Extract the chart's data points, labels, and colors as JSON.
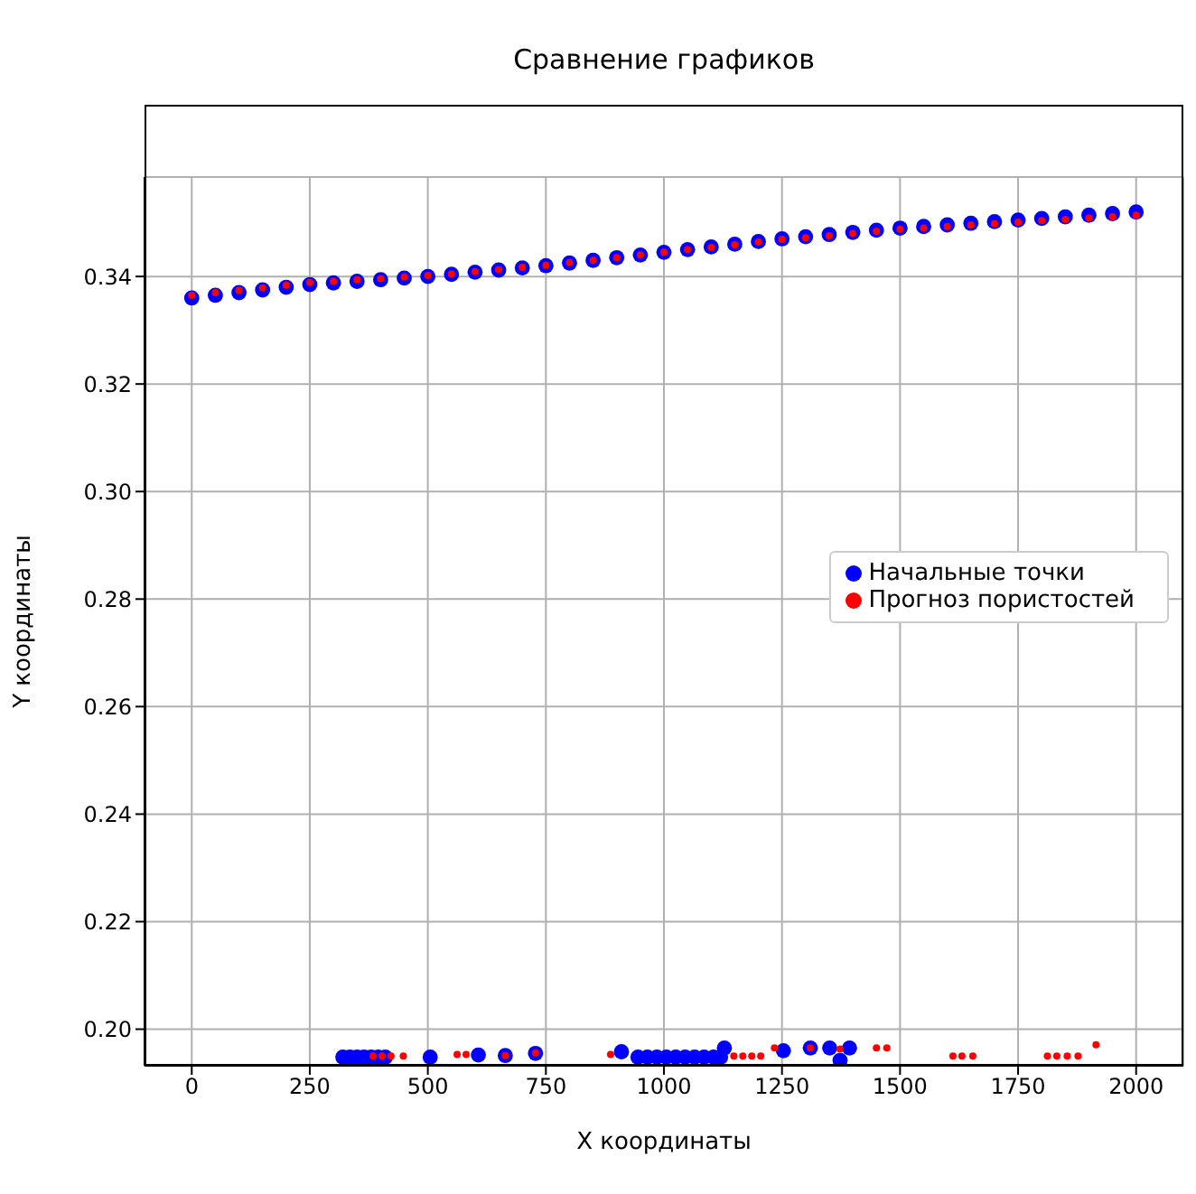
{
  "chart_data": {
    "type": "scatter",
    "title": "Сравнение графиков",
    "xlabel": "X координаты",
    "ylabel": "Y координаты",
    "xlim": [
      -100,
      2100
    ],
    "xticks": [
      0,
      250,
      500,
      750,
      1000,
      1250,
      1500,
      1750,
      2000
    ],
    "ylim": [
      0.1932,
      0.3585
    ],
    "yticks": [
      {
        "value": 0.2,
        "label": "0.20"
      },
      0.22,
      0.24,
      0.26,
      0.28,
      {
        "value": 0.3,
        "label": "0.30"
      },
      0.32,
      0.34
    ],
    "grid": true,
    "legend": "center right",
    "marker": "circle",
    "series": [
      {
        "name": "Начальные точки",
        "color": "#0000ff",
        "x": [
          0,
          50,
          100,
          150,
          200,
          250,
          300,
          350,
          400,
          450,
          500,
          550,
          600,
          650,
          700,
          750,
          800,
          850,
          900,
          950,
          1000,
          1050,
          1100,
          1150,
          1200,
          1250,
          1300,
          1350,
          1400,
          1450,
          1500,
          1550,
          1600,
          1650,
          1700,
          1750,
          1800,
          1850,
          1900,
          1950,
          2000,
          320,
          335,
          350,
          365,
          380,
          395,
          410,
          505,
          607,
          664,
          728,
          910,
          945,
          965,
          985,
          1005,
          1025,
          1045,
          1065,
          1085,
          1105,
          1120,
          1128,
          1253,
          1310,
          1351,
          1373,
          1393
        ],
        "values": [
          0.336,
          0.3365,
          0.337,
          0.3375,
          0.338,
          0.3385,
          0.3388,
          0.3391,
          0.3394,
          0.3397,
          0.34,
          0.3404,
          0.3408,
          0.3412,
          0.3416,
          0.342,
          0.3425,
          0.343,
          0.3435,
          0.344,
          0.3445,
          0.345,
          0.3455,
          0.346,
          0.3465,
          0.347,
          0.3474,
          0.3478,
          0.3482,
          0.3486,
          0.349,
          0.3493,
          0.3496,
          0.3499,
          0.3502,
          0.3505,
          0.3508,
          0.3511,
          0.3514,
          0.3517,
          0.352,
          0.1948,
          0.1948,
          0.1948,
          0.1948,
          0.1948,
          0.1948,
          0.1948,
          0.1948,
          0.1952,
          0.1951,
          0.1955,
          0.1958,
          0.1948,
          0.1948,
          0.1948,
          0.1948,
          0.1948,
          0.1948,
          0.1948,
          0.1948,
          0.1948,
          0.1948,
          0.1965,
          0.196,
          0.1965,
          0.1965,
          0.1942,
          0.1965
        ]
      },
      {
        "name": "Прогноз пористостей",
        "color": "#ff0000",
        "x": [
          0,
          50,
          100,
          150,
          200,
          250,
          300,
          350,
          400,
          450,
          500,
          550,
          600,
          650,
          700,
          750,
          800,
          850,
          900,
          950,
          1000,
          1050,
          1100,
          1150,
          1200,
          1250,
          1300,
          1350,
          1400,
          1450,
          1500,
          1550,
          1600,
          1650,
          1700,
          1750,
          1800,
          1850,
          1900,
          1950,
          2000,
          384,
          403,
          422,
          448,
          562,
          581,
          664,
          728,
          887,
          1148,
          1167,
          1186,
          1205,
          1234,
          1310,
          1373,
          1450,
          1472,
          1612,
          1631,
          1654,
          1812,
          1832,
          1854,
          1877,
          1915
        ],
        "values": [
          0.3365,
          0.337,
          0.3374,
          0.3379,
          0.3384,
          0.3389,
          0.3391,
          0.3394,
          0.3396,
          0.3399,
          0.3402,
          0.3405,
          0.3409,
          0.3413,
          0.3417,
          0.3421,
          0.3426,
          0.343,
          0.3435,
          0.344,
          0.3445,
          0.345,
          0.3454,
          0.3459,
          0.3464,
          0.3469,
          0.3472,
          0.3476,
          0.348,
          0.3484,
          0.3488,
          0.349,
          0.3493,
          0.3496,
          0.3498,
          0.3501,
          0.3504,
          0.3506,
          0.3509,
          0.3511,
          0.3514,
          0.195,
          0.195,
          0.195,
          0.195,
          0.1953,
          0.1953,
          0.1951,
          0.1956,
          0.1953,
          0.195,
          0.195,
          0.195,
          0.195,
          0.1965,
          0.1965,
          0.1963,
          0.1965,
          0.1965,
          0.195,
          0.195,
          0.195,
          0.195,
          0.195,
          0.195,
          0.195,
          0.1971
        ]
      }
    ]
  }
}
